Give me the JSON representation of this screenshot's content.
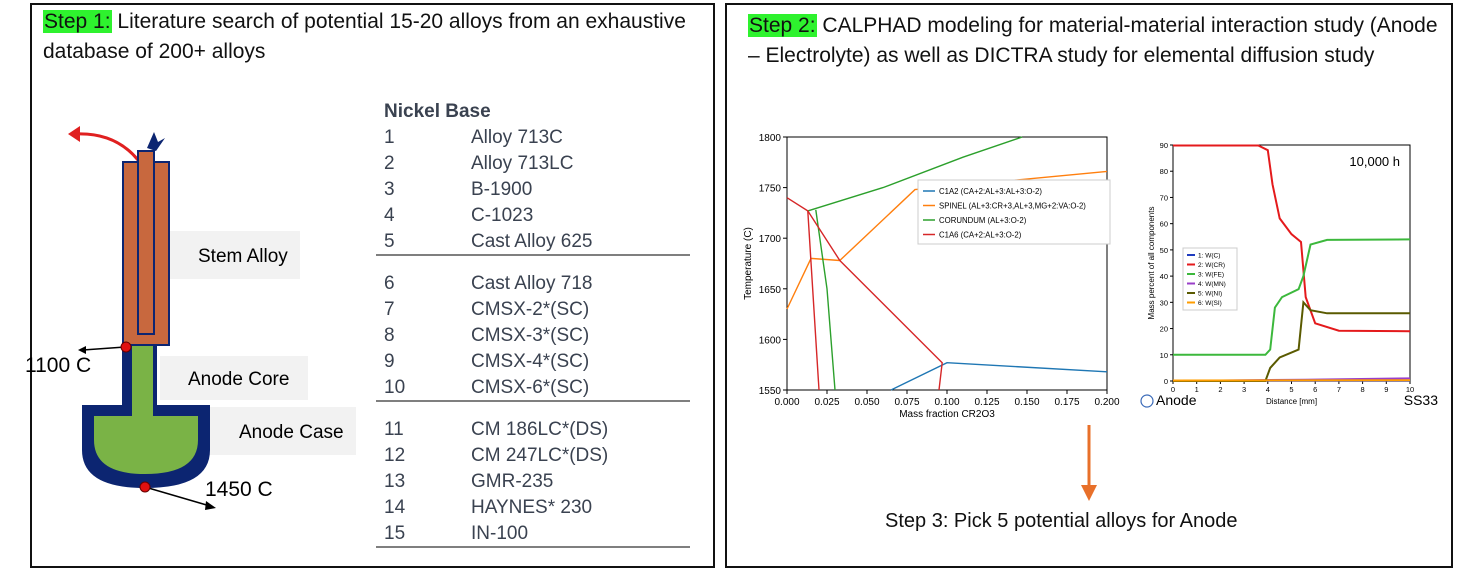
{
  "step1": {
    "label": "Step 1:",
    "text": " Literature search of potential 15-20 alloys from an exhaustive database of 200+ alloys"
  },
  "step2": {
    "label": "Step 2:",
    "text": " CALPHAD modeling for material-material interaction study (Anode – Electrolyte) as well as DICTRA study for elemental diffusion study"
  },
  "step3": {
    "text": "Step 3: Pick 5 potential alloys for Anode"
  },
  "diagram": {
    "labels": {
      "stem": "Stem Alloy",
      "core": "Anode Core",
      "case": "Anode Case",
      "temp_top": "1100 C",
      "temp_bottom": "1450 C"
    },
    "colors": {
      "stem": "#c8683e",
      "core": "#7ab346",
      "case": "#0c2571",
      "arrow": "#e02020",
      "dot": "#e01010"
    }
  },
  "alloy_table": {
    "header": "Nickel Base",
    "groups": [
      [
        {
          "n": "1",
          "name": "Alloy 713C"
        },
        {
          "n": "2",
          "name": "Alloy 713LC"
        },
        {
          "n": "3",
          "name": "B-1900"
        },
        {
          "n": "4",
          "name": "C-1023"
        },
        {
          "n": "5",
          "name": "Cast Alloy 625"
        }
      ],
      [
        {
          "n": "6",
          "name": "Cast Alloy 718"
        },
        {
          "n": "7",
          "name": "CMSX-2*(SC)"
        },
        {
          "n": "8",
          "name": "CMSX-3*(SC)"
        },
        {
          "n": "9",
          "name": "CMSX-4*(SC)"
        },
        {
          "n": "10",
          "name": "CMSX-6*(SC)"
        }
      ],
      [
        {
          "n": "11",
          "name": "CM 186LC*(DS)"
        },
        {
          "n": "12",
          "name": "CM 247LC*(DS)"
        },
        {
          "n": "13",
          "name": "GMR-235"
        },
        {
          "n": "14",
          "name": "HAYNES* 230"
        },
        {
          "n": "15",
          "name": "IN-100"
        }
      ]
    ]
  },
  "chart_data": [
    {
      "type": "line",
      "xlabel": "Mass fraction CR2O3",
      "ylabel": "Temperature (C)",
      "xlim": [
        0,
        0.2
      ],
      "ylim": [
        1550,
        1800
      ],
      "xticks": [
        "0.000",
        "0.025",
        "0.050",
        "0.075",
        "0.100",
        "0.125",
        "0.150",
        "0.175",
        "0.200"
      ],
      "yticks": [
        "1550",
        "1600",
        "1650",
        "1700",
        "1750",
        "1800"
      ],
      "legend_position": "top-right",
      "series": [
        {
          "name": "C1A2  (CA+2:AL+3:AL+3:O-2)",
          "color": "#1f77b4",
          "segments": [
            [
              [
                0.065,
                1550
              ],
              [
                0.1,
                1577
              ],
              [
                0.2,
                1568
              ]
            ]
          ]
        },
        {
          "name": "SPINEL  (AL+3:CR+3,AL+3,MG+2:VA:O-2)",
          "color": "#ff7f0e",
          "segments": [
            [
              [
                0,
                1630
              ],
              [
                0.015,
                1680
              ],
              [
                0.033,
                1678
              ]
            ],
            [
              [
                0.033,
                1678
              ],
              [
                0.08,
                1748
              ],
              [
                0.2,
                1766
              ]
            ]
          ]
        },
        {
          "name": "CORUNDUM  (AL+3:O-2)",
          "color": "#2ca02c",
          "segments": [
            [
              [
                0.013,
                1727
              ],
              [
                0.06,
                1750
              ],
              [
                0.11,
                1780
              ],
              [
                0.147,
                1800
              ]
            ],
            [
              [
                0.018,
                1728
              ],
              [
                0.025,
                1650
              ],
              [
                0.03,
                1550
              ]
            ]
          ]
        },
        {
          "name": "C1A6  (CA+2:AL+3:O-2)",
          "color": "#d62728",
          "segments": [
            [
              [
                0,
                1740
              ],
              [
                0.013,
                1727
              ],
              [
                0.033,
                1678
              ]
            ],
            [
              [
                0.013,
                1727
              ],
              [
                0.02,
                1550
              ]
            ],
            [
              [
                0.033,
                1678
              ],
              [
                0.097,
                1577
              ],
              [
                0.095,
                1550
              ]
            ]
          ]
        }
      ]
    },
    {
      "type": "line",
      "title": "10,000 h",
      "xlabel": "Distance [mm]",
      "ylabel": "Mass percent of all components",
      "xlim": [
        0,
        10
      ],
      "ylim": [
        0,
        90
      ],
      "xticks": [
        "0",
        "1",
        "2",
        "3",
        "4",
        "5",
        "6",
        "7",
        "8",
        "9",
        "10"
      ],
      "yticks": [
        "0",
        "10",
        "20",
        "30",
        "40",
        "50",
        "60",
        "70",
        "80",
        "90"
      ],
      "left_label": "Anode",
      "right_label": "SS33",
      "legend_position": "middle-left",
      "series": [
        {
          "name": "1:  W(C)",
          "color": "#1f3cbf",
          "points": [
            [
              0,
              0.1
            ],
            [
              10,
              0.1
            ]
          ]
        },
        {
          "name": "2:  W(CR)",
          "color": "#e41a1c",
          "points": [
            [
              0,
              89.8
            ],
            [
              3.6,
              89.8
            ],
            [
              4.0,
              88
            ],
            [
              4.2,
              75
            ],
            [
              4.5,
              62
            ],
            [
              5.0,
              56
            ],
            [
              5.4,
              53
            ],
            [
              5.6,
              32
            ],
            [
              6.0,
              22
            ],
            [
              7,
              19.2
            ],
            [
              10,
              19
            ]
          ]
        },
        {
          "name": "3:  W(FE)",
          "color": "#3cb83c",
          "points": [
            [
              0,
              10
            ],
            [
              3.9,
              10
            ],
            [
              4.1,
              12
            ],
            [
              4.3,
              28
            ],
            [
              4.6,
              32
            ],
            [
              5.3,
              35
            ],
            [
              5.5,
              40
            ],
            [
              5.8,
              52
            ],
            [
              6.5,
              53.8
            ],
            [
              10,
              54
            ]
          ]
        },
        {
          "name": "4:  W(MN)",
          "color": "#9a3fc8",
          "points": [
            [
              0,
              0
            ],
            [
              5.6,
              0.5
            ],
            [
              10,
              1
            ]
          ]
        },
        {
          "name": "5:  W(NI)",
          "color": "#5a5a00",
          "points": [
            [
              0,
              0
            ],
            [
              3.9,
              0
            ],
            [
              4.1,
              5
            ],
            [
              4.5,
              9
            ],
            [
              5.3,
              12
            ],
            [
              5.5,
              30
            ],
            [
              5.8,
              27
            ],
            [
              6.5,
              25.8
            ],
            [
              10,
              25.8
            ]
          ]
        },
        {
          "name": "6:  W(SI)",
          "color": "#ff9d00",
          "points": [
            [
              0,
              0.2
            ],
            [
              10,
              0.3
            ]
          ]
        }
      ]
    }
  ]
}
